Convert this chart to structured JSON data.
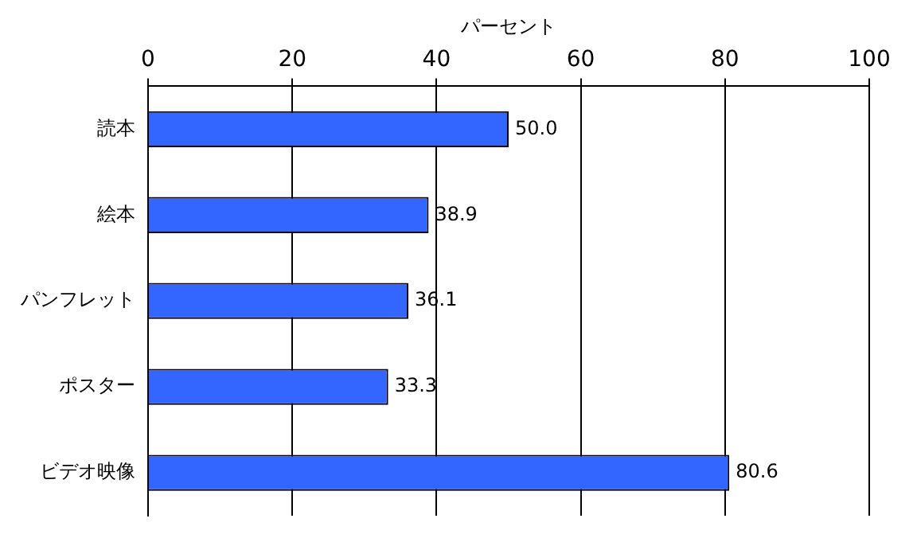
{
  "chart_data": {
    "type": "bar",
    "orientation": "horizontal",
    "xlabel": "パーセント",
    "categories": [
      "読本",
      "絵本",
      "パンフレット",
      "ポスター",
      "ビデオ映像"
    ],
    "values": [
      50.0,
      38.9,
      36.1,
      33.3,
      80.6
    ],
    "value_labels": [
      "50.0",
      "38.9",
      "36.1",
      "33.3",
      "80.6"
    ],
    "color": "#3366ff",
    "xlim": [
      0,
      100
    ],
    "xticks": [
      0,
      20,
      40,
      60,
      80,
      100
    ],
    "grid": "x",
    "legend": false
  }
}
